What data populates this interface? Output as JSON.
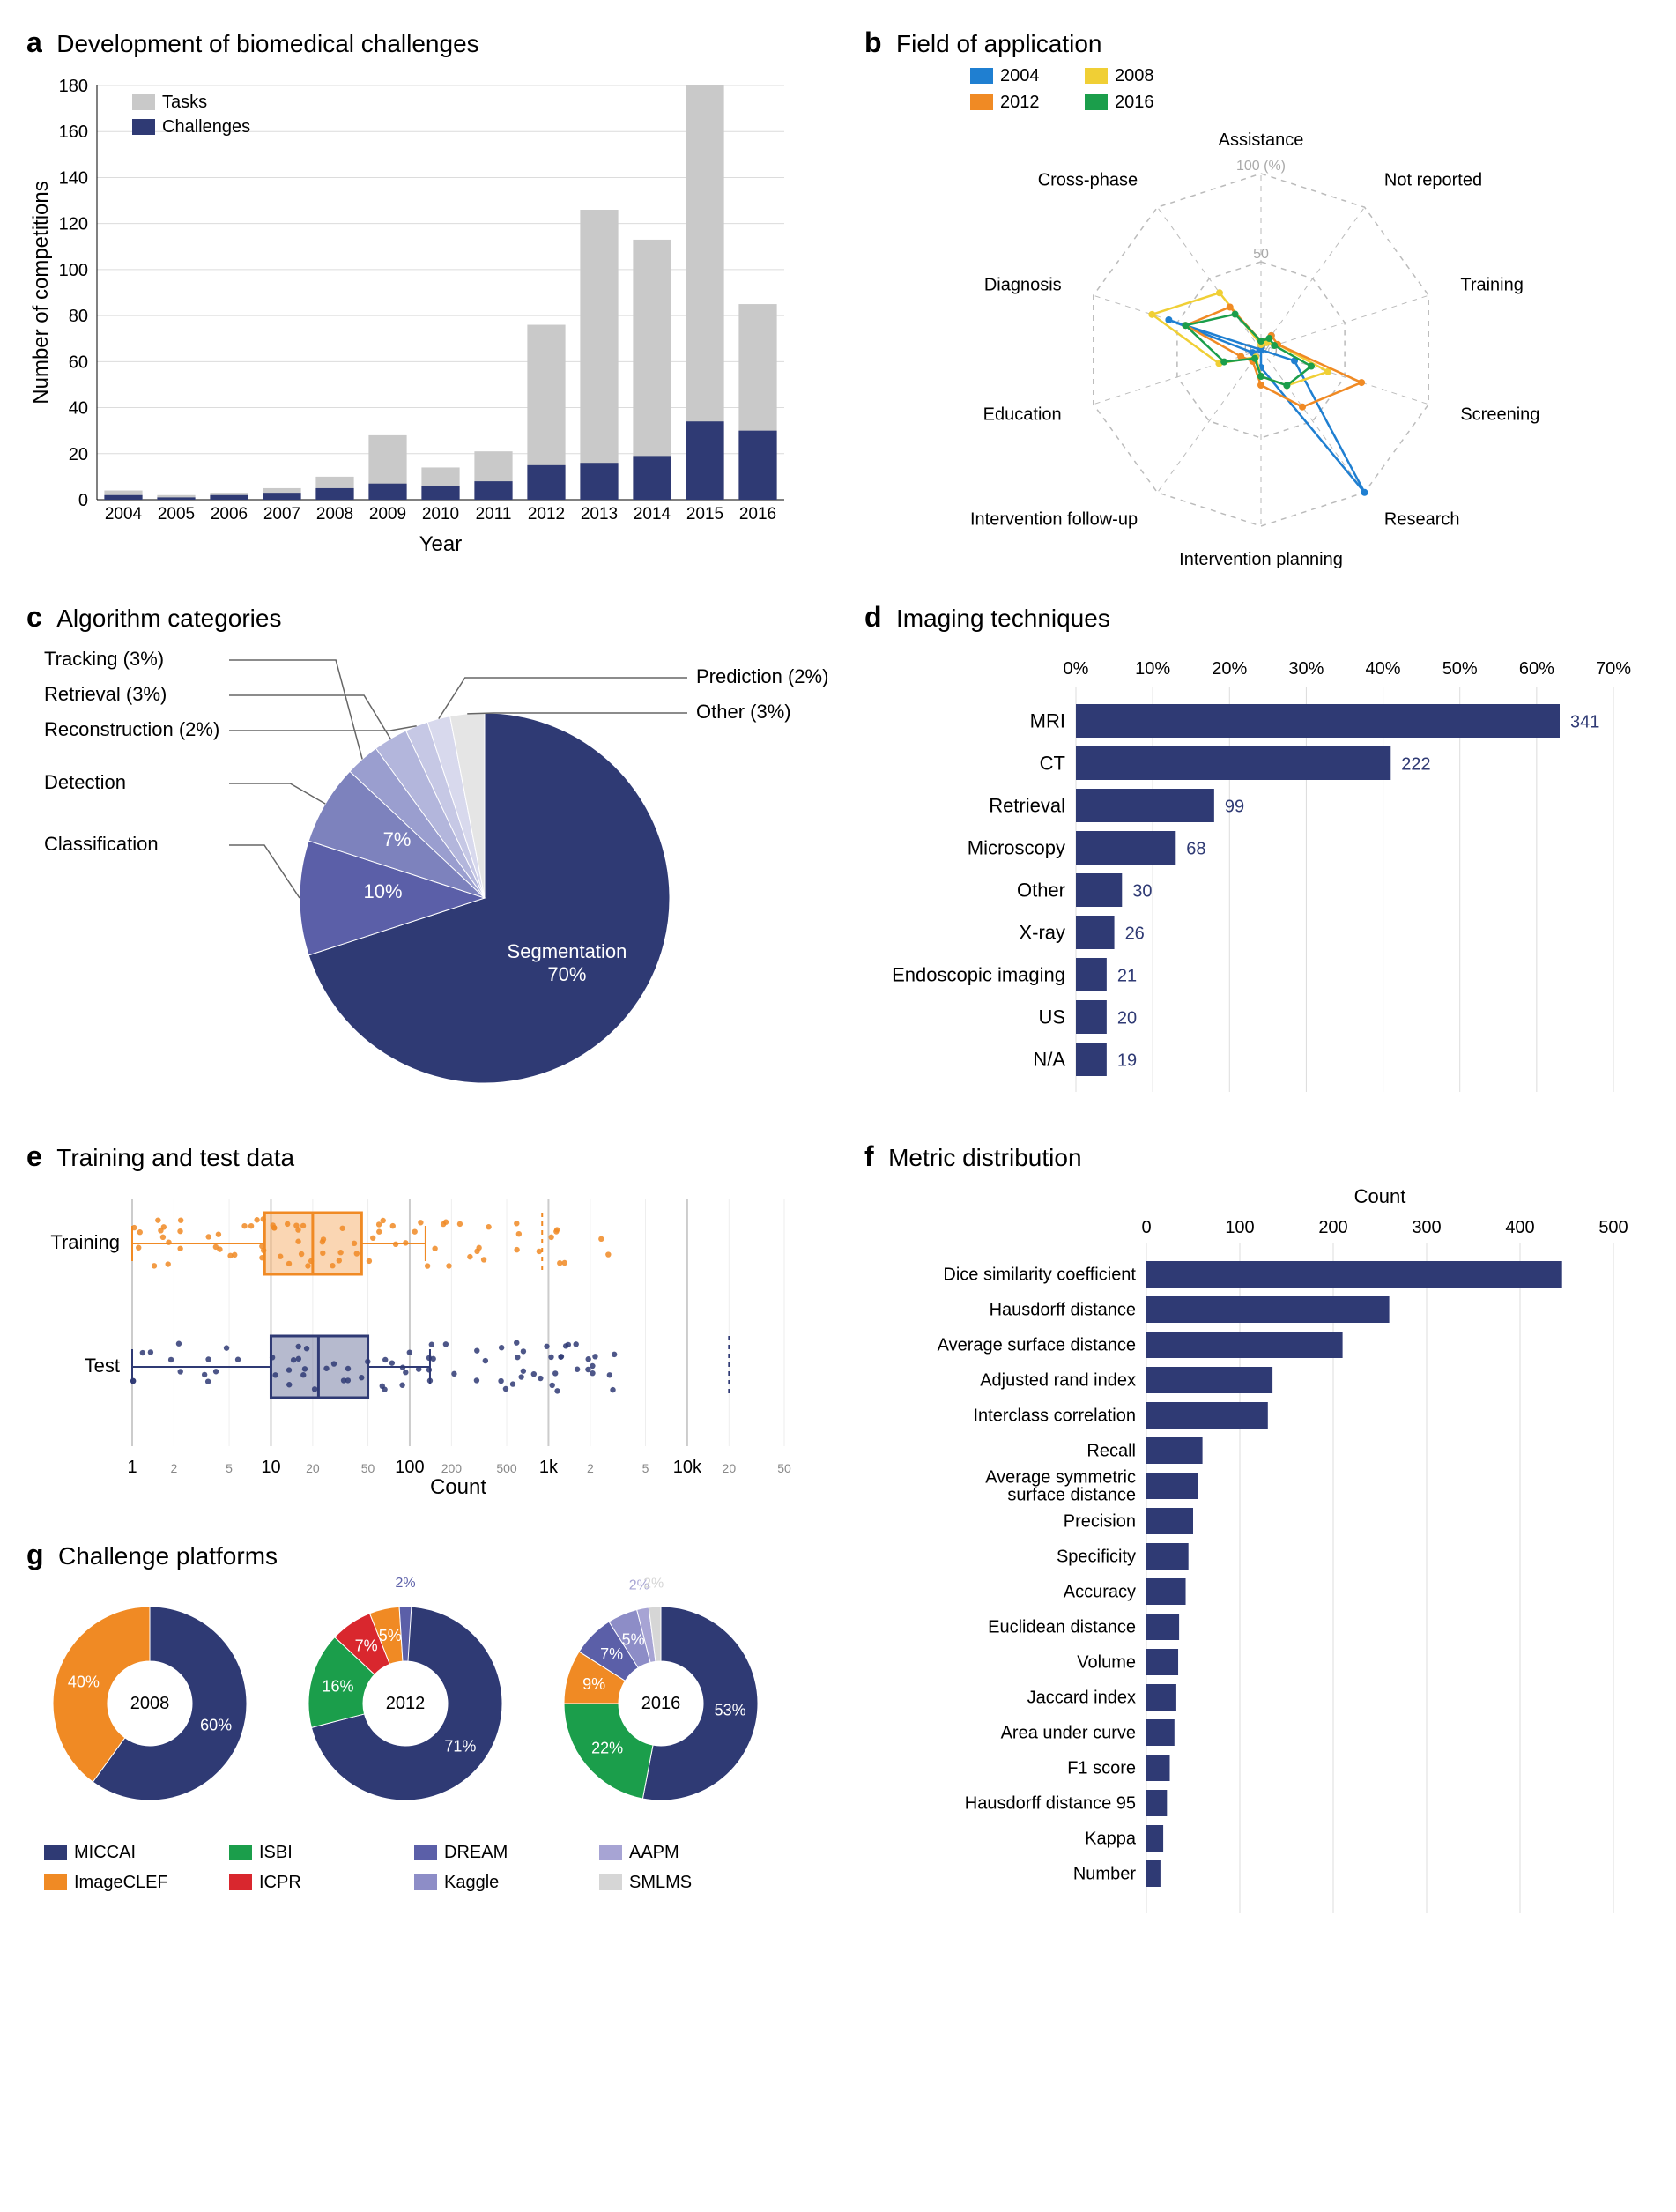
{
  "colors": {
    "navy": "#2f3a74",
    "lightgrey": "#c9c9c9",
    "grid": "#dcdcdc",
    "orange": "#f08a24",
    "green": "#1b9e4b",
    "red": "#d9272e",
    "yellow": "#f0cf35",
    "violet": "#5b5fa8",
    "lilac": "#a7a4d4",
    "silver": "#cfcfcf",
    "blue_series": "#1f7fd1",
    "text": "#000000"
  },
  "a": {
    "letter": "a",
    "title": "Development of biomedical challenges",
    "ylabel": "Number of competitions",
    "xlabel": "Year",
    "ylim": [
      0,
      180
    ],
    "ytick_step": 20,
    "legend": [
      {
        "label": "Tasks",
        "color": "#c9c9c9"
      },
      {
        "label": "Challenges",
        "color": "#2f3a74"
      }
    ],
    "years": [
      2004,
      2005,
      2006,
      2007,
      2008,
      2009,
      2010,
      2011,
      2012,
      2013,
      2014,
      2015,
      2016
    ],
    "tasks": [
      4,
      2,
      3,
      5,
      10,
      28,
      14,
      21,
      76,
      126,
      113,
      184,
      85
    ],
    "challenges": [
      2,
      1,
      2,
      3,
      5,
      7,
      6,
      8,
      15,
      16,
      19,
      34,
      30
    ]
  },
  "b": {
    "letter": "b",
    "title": "Field of application",
    "axes": [
      "Assistance",
      "Not reported",
      "Training",
      "Screening",
      "Research",
      "Intervention planning",
      "Intervention follow-up",
      "Education",
      "Diagnosis",
      "Cross-phase"
    ],
    "rings": [
      0,
      50,
      100
    ],
    "ring_unit": "(%)",
    "series": [
      {
        "year": "2004",
        "color": "#1f7fd1",
        "values": [
          0,
          10,
          0,
          20,
          100,
          10,
          0,
          5,
          55,
          0
        ]
      },
      {
        "year": "2008",
        "color": "#f0cf35",
        "values": [
          3,
          5,
          10,
          40,
          25,
          15,
          5,
          25,
          65,
          40
        ]
      },
      {
        "year": "2012",
        "color": "#f08a24",
        "values": [
          5,
          10,
          10,
          60,
          40,
          20,
          8,
          12,
          45,
          30
        ]
      },
      {
        "year": "2016",
        "color": "#1b9e4b",
        "values": [
          5,
          8,
          8,
          30,
          25,
          15,
          6,
          22,
          45,
          25
        ]
      }
    ]
  },
  "c": {
    "letter": "c",
    "title": "Algorithm categories",
    "slices": [
      {
        "label": "Segmentation",
        "pct": 70,
        "color": "#2f3a74",
        "inside": "Segmentation\n70%"
      },
      {
        "label": "Classification",
        "pct": 10,
        "color": "#5b5fa8",
        "inside": "10%"
      },
      {
        "label": "Detection",
        "pct": 7,
        "color": "#7d82bd",
        "inside": "7%"
      },
      {
        "label": "Tracking (3%)",
        "pct": 3,
        "color": "#9a9ecf"
      },
      {
        "label": "Retrieval (3%)",
        "pct": 3,
        "color": "#b3b6dc"
      },
      {
        "label": "Reconstruction (2%)",
        "pct": 2,
        "color": "#c6c8e5"
      },
      {
        "label": "Prediction (2%)",
        "pct": 2,
        "color": "#d8d9ed"
      },
      {
        "label": "Other (3%)",
        "pct": 3,
        "color": "#e5e5e5"
      }
    ]
  },
  "d": {
    "letter": "d",
    "title": "Imaging techniques",
    "xlim": [
      0,
      70
    ],
    "xtick_step": 10,
    "xunit": "%",
    "items": [
      {
        "label": "MRI",
        "pct": 63,
        "n": 341
      },
      {
        "label": "CT",
        "pct": 41,
        "n": 222
      },
      {
        "label": "Retrieval",
        "pct": 18,
        "n": 99
      },
      {
        "label": "Microscopy",
        "pct": 13,
        "n": 68
      },
      {
        "label": "Other",
        "pct": 6,
        "n": 30
      },
      {
        "label": "X-ray",
        "pct": 5,
        "n": 26
      },
      {
        "label": "Endoscopic imaging",
        "pct": 4,
        "n": 21
      },
      {
        "label": "US",
        "pct": 4,
        "n": 20
      },
      {
        "label": "N/A",
        "pct": 4,
        "n": 19
      }
    ],
    "bar_color": "#2f3a74"
  },
  "e": {
    "letter": "e",
    "title": "Training and test data",
    "xlabel": "Count",
    "ticks_major": [
      1,
      10,
      100,
      1000,
      10000
    ],
    "ticks_minor": [
      2,
      5,
      20,
      50,
      200,
      500,
      2000,
      5000,
      20000,
      50000
    ],
    "series": [
      {
        "name": "Training",
        "color": "#f08a24",
        "box": {
          "q1": 9,
          "med": 20,
          "q3": 45,
          "whisk_lo": 1,
          "whisk_hi": 130,
          "outlier_hint": 900
        }
      },
      {
        "name": "Test",
        "color": "#2f3a74",
        "box": {
          "q1": 10,
          "med": 22,
          "q3": 50,
          "whisk_lo": 1,
          "whisk_hi": 140,
          "outlier_hint": 20000
        }
      }
    ]
  },
  "f": {
    "letter": "f",
    "title": "Metric distribution",
    "xlabel": "Count",
    "xlim": [
      0,
      500
    ],
    "xtick_step": 100,
    "bar_color": "#2f3a74",
    "items": [
      {
        "label": "Dice similarity coefficient",
        "v": 445
      },
      {
        "label": "Hausdorff distance",
        "v": 260
      },
      {
        "label": "Average surface distance",
        "v": 210
      },
      {
        "label": "Adjusted rand index",
        "v": 135
      },
      {
        "label": "Interclass correlation",
        "v": 130
      },
      {
        "label": "Recall",
        "v": 60
      },
      {
        "label": "Average symmetric\nsurface distance",
        "v": 55
      },
      {
        "label": "Precision",
        "v": 50
      },
      {
        "label": "Specificity",
        "v": 45
      },
      {
        "label": "Accuracy",
        "v": 42
      },
      {
        "label": "Euclidean distance",
        "v": 35
      },
      {
        "label": "Volume",
        "v": 34
      },
      {
        "label": "Jaccard index",
        "v": 32
      },
      {
        "label": "Area under curve",
        "v": 30
      },
      {
        "label": "F1 score",
        "v": 25
      },
      {
        "label": "Hausdorff distance 95",
        "v": 22
      },
      {
        "label": "Kappa",
        "v": 18
      },
      {
        "label": "Number",
        "v": 15
      }
    ]
  },
  "g": {
    "letter": "g",
    "title": "Challenge platforms",
    "legend": [
      {
        "label": "MICCAI",
        "color": "#2f3a74"
      },
      {
        "label": "ISBI",
        "color": "#1b9e4b"
      },
      {
        "label": "DREAM",
        "color": "#5b5fa8"
      },
      {
        "label": "AAPM",
        "color": "#a7a4d4"
      },
      {
        "label": "ImageCLEF",
        "color": "#f08a24"
      },
      {
        "label": "ICPR",
        "color": "#d9272e"
      },
      {
        "label": "Kaggle",
        "color": "#8d8dc7"
      },
      {
        "label": "SMLMS",
        "color": "#d6d6d6"
      }
    ],
    "donuts": [
      {
        "year": "2008",
        "slices": [
          {
            "c": "#2f3a74",
            "pct": 60,
            "label": "60%"
          },
          {
            "c": "#f08a24",
            "pct": 40,
            "label": "40%"
          }
        ]
      },
      {
        "year": "2012",
        "slices": [
          {
            "c": "#2f3a74",
            "pct": 71,
            "label": "71%"
          },
          {
            "c": "#1b9e4b",
            "pct": 16,
            "label": "16%"
          },
          {
            "c": "#d9272e",
            "pct": 7,
            "label": "7%"
          },
          {
            "c": "#f08a24",
            "pct": 5,
            "label": "5%"
          },
          {
            "c": "#5b5fa8",
            "pct": 2,
            "label": "2%"
          }
        ]
      },
      {
        "year": "2016",
        "slices": [
          {
            "c": "#2f3a74",
            "pct": 53,
            "label": "53%"
          },
          {
            "c": "#1b9e4b",
            "pct": 22,
            "label": "22%"
          },
          {
            "c": "#f08a24",
            "pct": 9,
            "label": "9%"
          },
          {
            "c": "#5b5fa8",
            "pct": 7,
            "label": "7%"
          },
          {
            "c": "#8d8dc7",
            "pct": 5,
            "label": "5%"
          },
          {
            "c": "#a7a4d4",
            "pct": 2,
            "label": "2%"
          },
          {
            "c": "#d6d6d6",
            "pct": 2,
            "label": "2%"
          }
        ]
      }
    ]
  }
}
